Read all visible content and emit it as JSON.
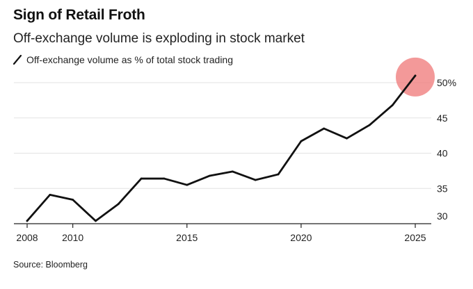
{
  "header": {
    "title": "Sign of Retail Froth",
    "subtitle": "Off-exchange volume is exploding in stock market"
  },
  "footer": {
    "source": "Source: Bloomberg"
  },
  "chart_data": {
    "type": "line",
    "title": "Sign of Retail Froth",
    "subtitle": "Off-exchange volume is exploding in stock market",
    "xlabel": "",
    "ylabel": "",
    "xlim": [
      2008,
      2025
    ],
    "ylim": [
      30,
      50
    ],
    "x_ticks": [
      2008,
      2010,
      2015,
      2020,
      2025
    ],
    "y_ticks": [
      30,
      35,
      40,
      45,
      50
    ],
    "y_tick_labels": [
      "30",
      "35",
      "40",
      "45",
      "50%"
    ],
    "grid": "horizontal",
    "legend_placement": "top-left",
    "series": [
      {
        "name": "Off-exchange volume as % of total stock trading",
        "color": "#111111",
        "x": [
          2008,
          2009,
          2010,
          2011,
          2012,
          2013,
          2014,
          2015,
          2016,
          2017,
          2018,
          2019,
          2020,
          2021,
          2022,
          2023,
          2024,
          2025
        ],
        "y": [
          30.4,
          34.1,
          33.4,
          30.4,
          32.8,
          36.4,
          36.4,
          35.5,
          36.8,
          37.4,
          36.2,
          37.0,
          41.7,
          43.5,
          42.1,
          44.0,
          46.8,
          51.0
        ]
      }
    ],
    "annotations": [
      {
        "type": "highlight-circle",
        "x": 2025,
        "y": 51.0,
        "color": "#f08080"
      }
    ]
  }
}
